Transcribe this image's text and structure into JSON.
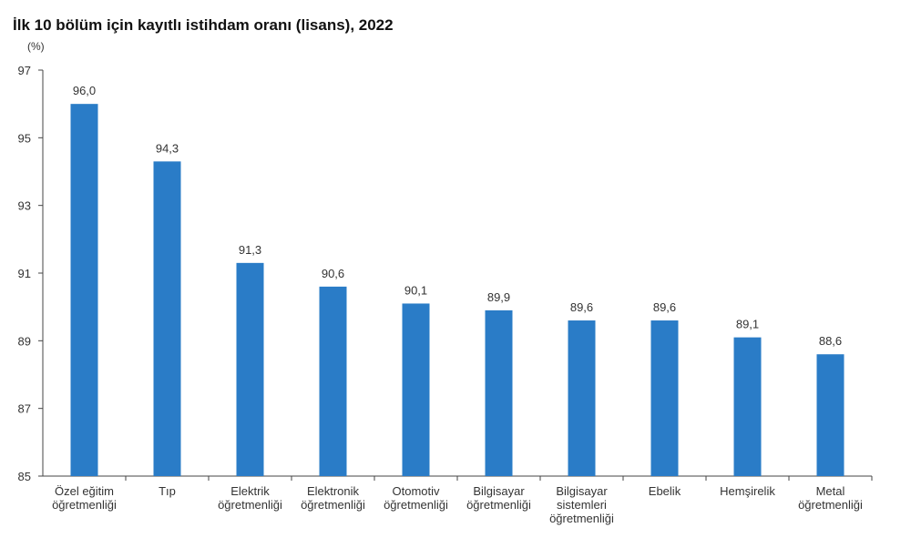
{
  "chart_data": {
    "type": "bar",
    "title": "İlk 10 bölüm için kayıtlı istihdam oranı (lisans), 2022",
    "ylabel": "(%)",
    "xlabel": "",
    "ylim": [
      85,
      97
    ],
    "yticks": [
      "85",
      "87",
      "89",
      "91",
      "93",
      "95",
      "97"
    ],
    "grid": false,
    "bar_color": "#2a7cc7",
    "categories": [
      [
        "Özel eğitim",
        "öğretmenliği"
      ],
      [
        "Tıp"
      ],
      [
        "Elektrik",
        "öğretmenliği"
      ],
      [
        "Elektronik",
        "öğretmenliği"
      ],
      [
        "Otomotiv",
        "öğretmenliği"
      ],
      [
        "Bilgisayar",
        "öğretmenliği"
      ],
      [
        "Bilgisayar",
        "sistemleri",
        "öğretmenliği"
      ],
      [
        "Ebelik"
      ],
      [
        "Hemşirelik"
      ],
      [
        "Metal",
        "öğretmenliği"
      ]
    ],
    "values": [
      96.0,
      94.3,
      91.3,
      90.6,
      90.1,
      89.9,
      89.6,
      89.6,
      89.1,
      88.6
    ],
    "data_labels": [
      "96,0",
      "94,3",
      "91,3",
      "90,6",
      "90,1",
      "89,9",
      "89,6",
      "89,6",
      "89,1",
      "88,6"
    ]
  }
}
